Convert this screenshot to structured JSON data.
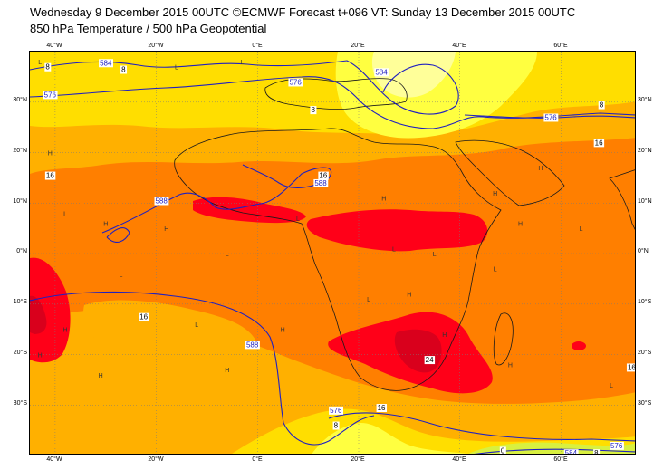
{
  "header": {
    "line1": "Wednesday 9 December 2015 00UTC ©ECMWF Forecast t+096 VT: Sunday 13 December 2015 00UTC",
    "line2": "850 hPa Temperature / 500 hPa Geopotential"
  },
  "map": {
    "extent": {
      "lon_min": -45,
      "lon_max": 75,
      "lat_min": -40,
      "lat_max": 40
    },
    "colors": {
      "t_warmest": "#d9001c",
      "t_hot": "#ff0018",
      "t_warm": "#ff7f00",
      "t_mild": "#ffb000",
      "t_cool": "#ffde00",
      "t_cooler": "#ffff40",
      "t_cold": "#ffff99",
      "t_green": "#d8f040",
      "coastline": "#1a1a1a",
      "geopotential": "#2020c0",
      "gridline": "#7a7a7a"
    },
    "lon_ticks": [
      "40°W",
      "20°W",
      "0°E",
      "20°E",
      "40°E",
      "60°E"
    ],
    "lat_ticks": [
      "30°N",
      "20°N",
      "10°N",
      "0°N",
      "10°S",
      "20°S",
      "30°S"
    ],
    "contour_labels": [
      {
        "text": "584",
        "lon": -30,
        "lat": 37.8,
        "color": "geopotential"
      },
      {
        "text": "576",
        "lon": -41,
        "lat": 31.5,
        "color": "geopotential"
      },
      {
        "text": "576",
        "lon": 7.5,
        "lat": 34,
        "color": "geopotential"
      },
      {
        "text": "584",
        "lon": 24.5,
        "lat": 36,
        "color": "geopotential"
      },
      {
        "text": "576",
        "lon": 58,
        "lat": 27,
        "color": "geopotential"
      },
      {
        "text": "588",
        "lon": 12.5,
        "lat": 14,
        "color": "geopotential"
      },
      {
        "text": "588",
        "lon": -19,
        "lat": 10.5,
        "color": "geopotential"
      },
      {
        "text": "588",
        "lon": -1,
        "lat": -18,
        "color": "geopotential"
      },
      {
        "text": "576",
        "lon": 15.5,
        "lat": -31,
        "color": "geopotential"
      },
      {
        "text": "576",
        "lon": 71,
        "lat": -38,
        "color": "geopotential"
      },
      {
        "text": "584",
        "lon": 62,
        "lat": -39.5,
        "color": "geopotential"
      },
      {
        "text": "8",
        "lon": -41.5,
        "lat": 37,
        "color": "temperature"
      },
      {
        "text": "8",
        "lon": -26.5,
        "lat": 36.5,
        "color": "temperature"
      },
      {
        "text": "8",
        "lon": 11,
        "lat": 28.5,
        "color": "temperature"
      },
      {
        "text": "8",
        "lon": 68,
        "lat": 29.5,
        "color": "temperature"
      },
      {
        "text": "16",
        "lon": 67.5,
        "lat": 22,
        "color": "temperature"
      },
      {
        "text": "16",
        "lon": -41,
        "lat": 15.5,
        "color": "temperature"
      },
      {
        "text": "16",
        "lon": 13,
        "lat": 15.5,
        "color": "temperature"
      },
      {
        "text": "16",
        "lon": -22.5,
        "lat": -12.5,
        "color": "temperature"
      },
      {
        "text": "16",
        "lon": 24.5,
        "lat": -30.5,
        "color": "temperature"
      },
      {
        "text": "16",
        "lon": 74,
        "lat": -22.5,
        "color": "temperature"
      },
      {
        "text": "24",
        "lon": 34,
        "lat": -21,
        "color": "temperature"
      },
      {
        "text": "8",
        "lon": 15.5,
        "lat": -34,
        "color": "temperature"
      },
      {
        "text": "0",
        "lon": 48.5,
        "lat": -39,
        "color": "temperature"
      },
      {
        "text": "8",
        "lon": 67,
        "lat": -39.5,
        "color": "temperature"
      }
    ],
    "h_markers": [
      {
        "lon": -41,
        "lat": 20
      },
      {
        "lon": -30,
        "lat": 6
      },
      {
        "lon": -18,
        "lat": 5
      },
      {
        "lon": 25,
        "lat": 11
      },
      {
        "lon": 56,
        "lat": 17
      },
      {
        "lon": 47,
        "lat": 12
      },
      {
        "lon": -43,
        "lat": -20
      },
      {
        "lon": -31,
        "lat": -24
      },
      {
        "lon": -6,
        "lat": -23
      },
      {
        "lon": 50,
        "lat": -22
      },
      {
        "lon": 37,
        "lat": -16
      },
      {
        "lon": 52,
        "lat": 6
      },
      {
        "lon": -38,
        "lat": -15
      },
      {
        "lon": 5,
        "lat": -15
      },
      {
        "lon": 30,
        "lat": -8
      }
    ],
    "l_markers": [
      {
        "lon": -43,
        "lat": 38
      },
      {
        "lon": -16,
        "lat": 37
      },
      {
        "lon": -3,
        "lat": 38
      },
      {
        "lon": 30,
        "lat": 29
      },
      {
        "lon": -38,
        "lat": 8
      },
      {
        "lon": -27,
        "lat": -4
      },
      {
        "lon": -6,
        "lat": 0
      },
      {
        "lon": 27,
        "lat": 1
      },
      {
        "lon": 47,
        "lat": -3
      },
      {
        "lon": 22,
        "lat": -9
      },
      {
        "lon": 70,
        "lat": -26
      },
      {
        "lon": -12,
        "lat": -14
      },
      {
        "lon": 8,
        "lat": 7
      },
      {
        "lon": 64,
        "lat": 5
      },
      {
        "lon": 35,
        "lat": 0
      }
    ]
  }
}
